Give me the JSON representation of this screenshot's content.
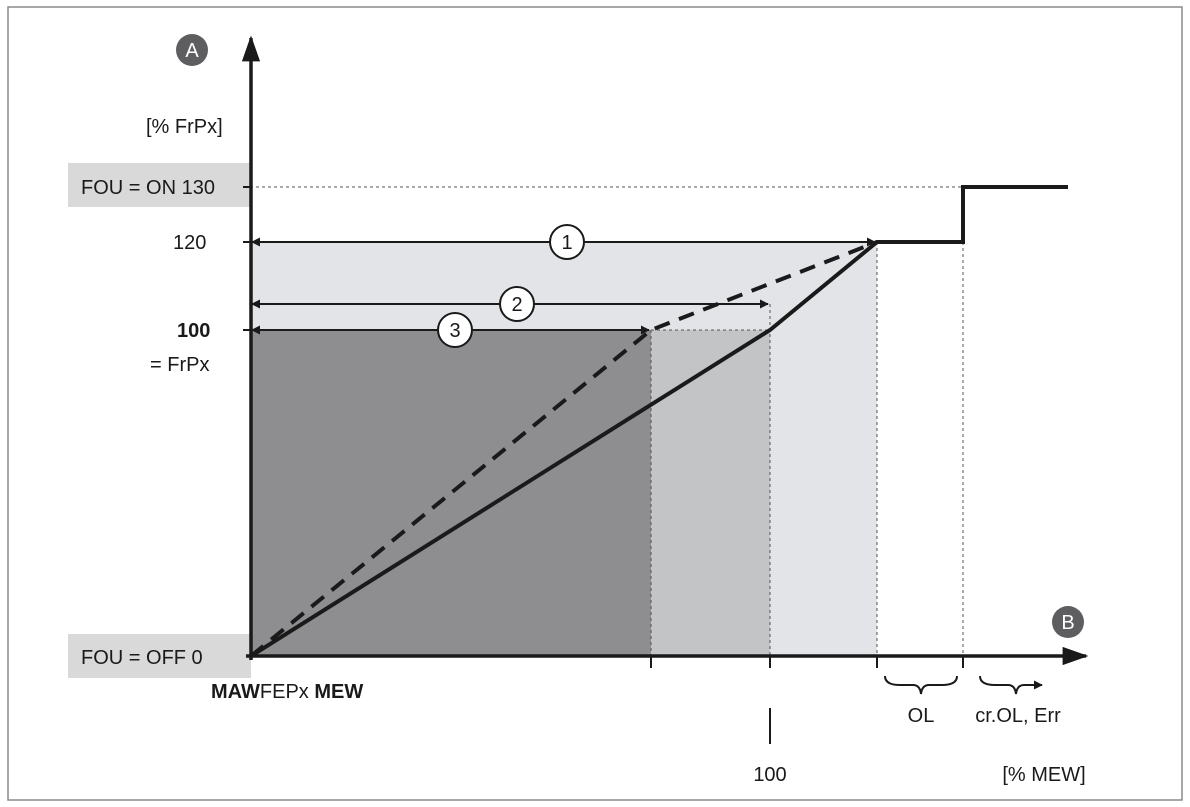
{
  "axes": {
    "y_marker": "A",
    "x_marker": "B",
    "y_unit": "[% FrPx]",
    "x_unit": "[% MEW]"
  },
  "y_labels": {
    "fou_on": "FOU = ON 130",
    "v120": "120",
    "v100": "100",
    "frpx": "= FrPx",
    "fou_off": "FOU = OFF 0"
  },
  "x_labels": {
    "origin_part1": "MAW",
    "origin_part2": "FEPx ",
    "origin_part3": "MEW",
    "v100": "100",
    "ol": "OL",
    "crol": "cr.OL, Err"
  },
  "markers": [
    "1",
    "2",
    "3"
  ],
  "colors": {
    "region_light": "#e3e4e8",
    "region_medium": "#c3c4c6",
    "region_dark": "#8e8d8f",
    "label_box": "#d9d9d9",
    "line": "#1a1a1a",
    "marker_fill": "#5e5e60"
  }
}
